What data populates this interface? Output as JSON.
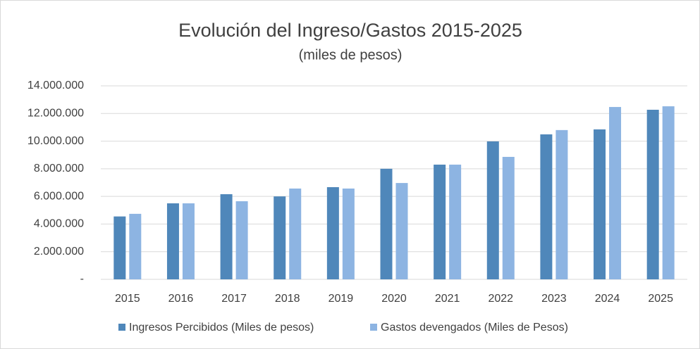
{
  "chart_data": {
    "type": "bar",
    "title": "Evolución del Ingreso/Gastos 2015-2025",
    "subtitle": "(miles de pesos)",
    "categories": [
      "2015",
      "2016",
      "2017",
      "2018",
      "2019",
      "2020",
      "2021",
      "2022",
      "2023",
      "2024",
      "2025"
    ],
    "series": [
      {
        "name": "Ingresos Percibidos (Miles de pesos)",
        "color": "#4f87ba",
        "values": [
          4550000,
          5500000,
          6160000,
          6000000,
          6670000,
          8000000,
          8300000,
          9980000,
          10490000,
          10850000,
          12270000
        ]
      },
      {
        "name": "Gastos devengados (Miles de Pesos)",
        "color": "#8db4e2",
        "values": [
          4740000,
          5500000,
          5650000,
          6570000,
          6570000,
          6970000,
          8300000,
          8860000,
          10800000,
          12470000,
          12520000
        ]
      }
    ],
    "ylim": [
      0,
      14000000
    ],
    "yticks": [
      {
        "value": 0,
        "label": "-"
      },
      {
        "value": 2000000,
        "label": "2.000.000"
      },
      {
        "value": 4000000,
        "label": "4.000.000"
      },
      {
        "value": 6000000,
        "label": "6.000.000"
      },
      {
        "value": 8000000,
        "label": "8.000.000"
      },
      {
        "value": 10000000,
        "label": "10.000.000"
      },
      {
        "value": 12000000,
        "label": "12.000.000"
      },
      {
        "value": 14000000,
        "label": "14.000.000"
      }
    ],
    "grid": true,
    "legend": "bottom"
  }
}
